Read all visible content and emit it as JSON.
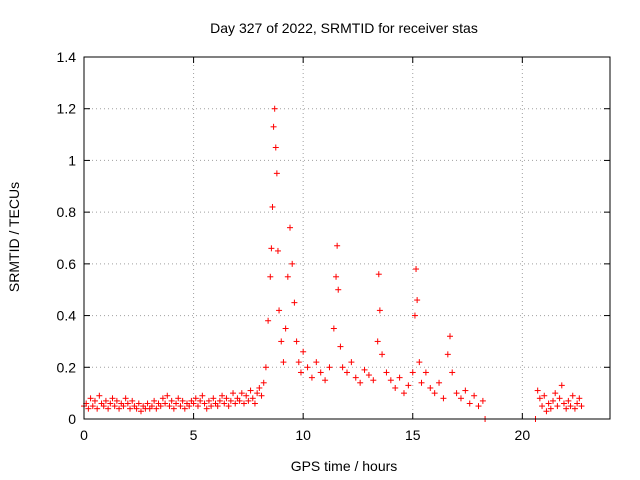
{
  "chart_data": {
    "type": "scatter",
    "title": "Day 327 of 2022, SRMTID for receiver stas",
    "xlabel": "GPS time / hours",
    "ylabel": "SRMTID / TECUs",
    "xlim": [
      0,
      24
    ],
    "ylim": [
      0,
      1.4
    ],
    "xticks": [
      0,
      5,
      10,
      15,
      20
    ],
    "xtick_labels": [
      "0",
      "5",
      "10",
      "15",
      "20"
    ],
    "yticks": [
      0,
      0.2,
      0.4,
      0.6,
      0.8,
      1.0,
      1.2,
      1.4
    ],
    "ytick_labels": [
      "0",
      "0.2",
      "0.4",
      "0.6",
      "0.8",
      "1",
      "1.2",
      "1.4"
    ],
    "grid": true,
    "marker": "plus",
    "series_color": "#ff0000",
    "series": [
      {
        "name": "stas",
        "points": [
          [
            0.0,
            0.05
          ],
          [
            0.1,
            0.06
          ],
          [
            0.2,
            0.04
          ],
          [
            0.3,
            0.08
          ],
          [
            0.4,
            0.05
          ],
          [
            0.5,
            0.07
          ],
          [
            0.6,
            0.04
          ],
          [
            0.7,
            0.09
          ],
          [
            0.8,
            0.06
          ],
          [
            0.9,
            0.05
          ],
          [
            1.0,
            0.07
          ],
          [
            1.1,
            0.04
          ],
          [
            1.2,
            0.06
          ],
          [
            1.3,
            0.08
          ],
          [
            1.4,
            0.05
          ],
          [
            1.5,
            0.07
          ],
          [
            1.6,
            0.04
          ],
          [
            1.7,
            0.06
          ],
          [
            1.8,
            0.05
          ],
          [
            1.9,
            0.08
          ],
          [
            2.0,
            0.06
          ],
          [
            2.1,
            0.04
          ],
          [
            2.2,
            0.07
          ],
          [
            2.3,
            0.05
          ],
          [
            2.4,
            0.04
          ],
          [
            2.5,
            0.06
          ],
          [
            2.6,
            0.03
          ],
          [
            2.7,
            0.05
          ],
          [
            2.8,
            0.04
          ],
          [
            2.9,
            0.06
          ],
          [
            3.0,
            0.04
          ],
          [
            3.1,
            0.05
          ],
          [
            3.2,
            0.07
          ],
          [
            3.3,
            0.04
          ],
          [
            3.4,
            0.06
          ],
          [
            3.5,
            0.05
          ],
          [
            3.6,
            0.08
          ],
          [
            3.7,
            0.06
          ],
          [
            3.8,
            0.09
          ],
          [
            3.9,
            0.05
          ],
          [
            4.0,
            0.07
          ],
          [
            4.1,
            0.04
          ],
          [
            4.2,
            0.06
          ],
          [
            4.3,
            0.08
          ],
          [
            4.4,
            0.05
          ],
          [
            4.5,
            0.07
          ],
          [
            4.6,
            0.04
          ],
          [
            4.7,
            0.06
          ],
          [
            4.8,
            0.05
          ],
          [
            4.9,
            0.07
          ],
          [
            5.0,
            0.06
          ],
          [
            5.1,
            0.08
          ],
          [
            5.2,
            0.05
          ],
          [
            5.3,
            0.07
          ],
          [
            5.4,
            0.09
          ],
          [
            5.5,
            0.06
          ],
          [
            5.6,
            0.04
          ],
          [
            5.7,
            0.07
          ],
          [
            5.8,
            0.05
          ],
          [
            5.9,
            0.08
          ],
          [
            6.0,
            0.06
          ],
          [
            6.1,
            0.05
          ],
          [
            6.2,
            0.07
          ],
          [
            6.3,
            0.09
          ],
          [
            6.4,
            0.06
          ],
          [
            6.5,
            0.08
          ],
          [
            6.6,
            0.05
          ],
          [
            6.7,
            0.07
          ],
          [
            6.8,
            0.1
          ],
          [
            6.9,
            0.06
          ],
          [
            7.0,
            0.08
          ],
          [
            7.1,
            0.07
          ],
          [
            7.2,
            0.1
          ],
          [
            7.3,
            0.06
          ],
          [
            7.4,
            0.09
          ],
          [
            7.5,
            0.07
          ],
          [
            7.6,
            0.11
          ],
          [
            7.7,
            0.08
          ],
          [
            7.8,
            0.06
          ],
          [
            7.9,
            0.1
          ],
          [
            8.0,
            0.12
          ],
          [
            8.1,
            0.09
          ],
          [
            8.2,
            0.14
          ],
          [
            8.3,
            0.2
          ],
          [
            8.4,
            0.38
          ],
          [
            8.5,
            0.55
          ],
          [
            8.55,
            0.66
          ],
          [
            8.6,
            0.82
          ],
          [
            8.65,
            1.13
          ],
          [
            8.7,
            1.2
          ],
          [
            8.75,
            1.05
          ],
          [
            8.8,
            0.95
          ],
          [
            8.85,
            0.65
          ],
          [
            8.9,
            0.42
          ],
          [
            9.0,
            0.3
          ],
          [
            9.1,
            0.22
          ],
          [
            9.2,
            0.35
          ],
          [
            9.3,
            0.55
          ],
          [
            9.4,
            0.74
          ],
          [
            9.5,
            0.6
          ],
          [
            9.6,
            0.45
          ],
          [
            9.7,
            0.3
          ],
          [
            9.8,
            0.22
          ],
          [
            9.9,
            0.18
          ],
          [
            10.0,
            0.26
          ],
          [
            10.2,
            0.2
          ],
          [
            10.4,
            0.16
          ],
          [
            10.6,
            0.22
          ],
          [
            10.8,
            0.18
          ],
          [
            11.0,
            0.15
          ],
          [
            11.2,
            0.2
          ],
          [
            11.4,
            0.35
          ],
          [
            11.5,
            0.55
          ],
          [
            11.55,
            0.67
          ],
          [
            11.6,
            0.5
          ],
          [
            11.7,
            0.28
          ],
          [
            11.8,
            0.2
          ],
          [
            12.0,
            0.18
          ],
          [
            12.2,
            0.22
          ],
          [
            12.4,
            0.16
          ],
          [
            12.6,
            0.14
          ],
          [
            12.8,
            0.19
          ],
          [
            13.0,
            0.17
          ],
          [
            13.2,
            0.15
          ],
          [
            13.4,
            0.3
          ],
          [
            13.45,
            0.56
          ],
          [
            13.5,
            0.42
          ],
          [
            13.6,
            0.25
          ],
          [
            13.8,
            0.18
          ],
          [
            14.0,
            0.15
          ],
          [
            14.2,
            0.12
          ],
          [
            14.4,
            0.16
          ],
          [
            14.6,
            0.1
          ],
          [
            14.8,
            0.13
          ],
          [
            15.0,
            0.18
          ],
          [
            15.1,
            0.4
          ],
          [
            15.15,
            0.58
          ],
          [
            15.2,
            0.46
          ],
          [
            15.3,
            0.22
          ],
          [
            15.4,
            0.14
          ],
          [
            15.6,
            0.18
          ],
          [
            15.8,
            0.12
          ],
          [
            16.0,
            0.1
          ],
          [
            16.2,
            0.14
          ],
          [
            16.4,
            0.08
          ],
          [
            16.6,
            0.25
          ],
          [
            16.7,
            0.32
          ],
          [
            16.8,
            0.18
          ],
          [
            17.0,
            0.1
          ],
          [
            17.2,
            0.08
          ],
          [
            17.4,
            0.11
          ],
          [
            17.6,
            0.06
          ],
          [
            17.8,
            0.09
          ],
          [
            18.0,
            0.05
          ],
          [
            18.2,
            0.07
          ],
          [
            18.3,
            0.0
          ],
          [
            20.6,
            0.0
          ],
          [
            20.7,
            0.11
          ],
          [
            20.8,
            0.08
          ],
          [
            20.9,
            0.05
          ],
          [
            21.0,
            0.09
          ],
          [
            21.1,
            0.03
          ],
          [
            21.2,
            0.06
          ],
          [
            21.3,
            0.04
          ],
          [
            21.4,
            0.07
          ],
          [
            21.5,
            0.1
          ],
          [
            21.6,
            0.05
          ],
          [
            21.7,
            0.08
          ],
          [
            21.8,
            0.13
          ],
          [
            21.9,
            0.06
          ],
          [
            22.0,
            0.04
          ],
          [
            22.1,
            0.07
          ],
          [
            22.2,
            0.05
          ],
          [
            22.3,
            0.09
          ],
          [
            22.4,
            0.04
          ],
          [
            22.5,
            0.06
          ],
          [
            22.6,
            0.08
          ],
          [
            22.7,
            0.05
          ]
        ]
      }
    ]
  }
}
